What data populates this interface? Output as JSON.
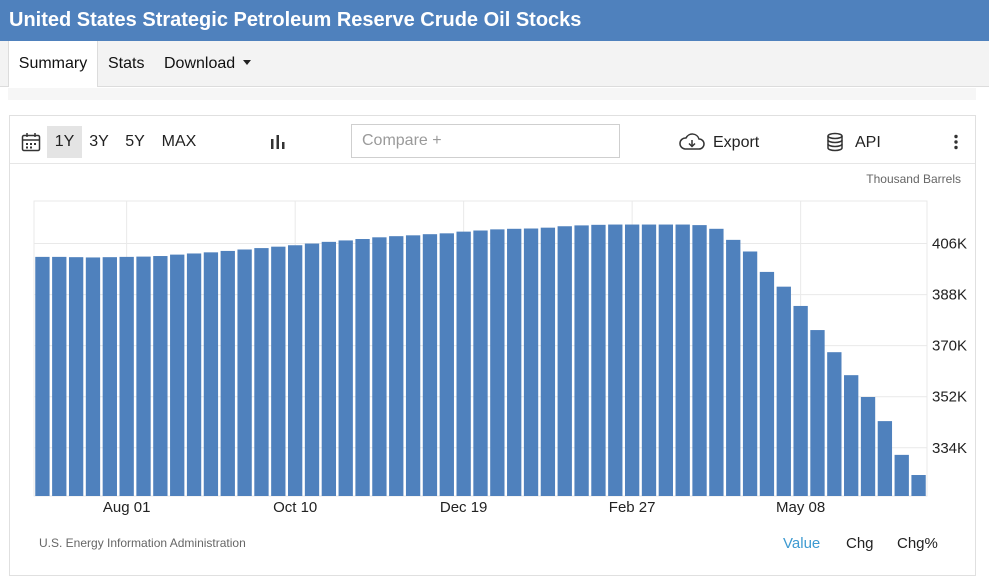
{
  "header": {
    "title": "United States Strategic Petroleum Reserve Crude Oil Stocks"
  },
  "tabs": [
    {
      "label": "Summary",
      "active": true
    },
    {
      "label": "Stats",
      "active": false
    },
    {
      "label": "Download",
      "active": false
    }
  ],
  "toolbar": {
    "calendar_icon": "calendar-icon",
    "ranges": [
      {
        "label": "1Y",
        "active": true
      },
      {
        "label": "3Y",
        "active": false
      },
      {
        "label": "5Y",
        "active": false
      },
      {
        "label": "MAX",
        "active": false
      }
    ],
    "chart_type_icon": "bar-chart-icon",
    "compare_placeholder": "Compare +",
    "export_label": "Export",
    "export_icon": "cloud-download-icon",
    "api_label": "API",
    "api_icon": "database-icon",
    "more_icon": "more-vertical-icon"
  },
  "chart_footer": {
    "source": "U.S. Energy Information Administration",
    "view_toggles": [
      {
        "label": "Value",
        "active": true
      },
      {
        "label": "Chg",
        "active": false
      },
      {
        "label": "Chg%",
        "active": false
      }
    ]
  },
  "colors": {
    "bar": "#4f81bd",
    "header": "#4f81bd",
    "active_toggle": "#3d9ad1",
    "grid": "#e9e9e9"
  },
  "chart_data": {
    "type": "bar",
    "unit_label": "Thousand Barrels",
    "x_tick_labels": [
      "Aug 01",
      "Oct 10",
      "Dec 19",
      "Feb 27",
      "May 08"
    ],
    "x_tick_indices": [
      5,
      15,
      25,
      35,
      45
    ],
    "y_tick_labels": [
      "406K",
      "388K",
      "370K",
      "352K",
      "334K"
    ],
    "y_tick_values": [
      406,
      388,
      370,
      352,
      334
    ],
    "ylim": [
      317,
      421
    ],
    "grid": true,
    "values": [
      401.3,
      401.3,
      401.2,
      401.1,
      401.2,
      401.3,
      401.4,
      401.6,
      402.1,
      402.5,
      402.9,
      403.4,
      403.9,
      404.4,
      404.9,
      405.4,
      406.0,
      406.6,
      407.1,
      407.6,
      408.2,
      408.6,
      408.9,
      409.3,
      409.6,
      410.2,
      410.6,
      411.0,
      411.2,
      411.3,
      411.6,
      412.1,
      412.4,
      412.6,
      412.7,
      412.7,
      412.7,
      412.7,
      412.7,
      412.5,
      411.2,
      407.3,
      403.2,
      396.0,
      390.8,
      384.0,
      375.5,
      367.7,
      359.6,
      351.9,
      343.4,
      331.5,
      324.4
    ]
  }
}
